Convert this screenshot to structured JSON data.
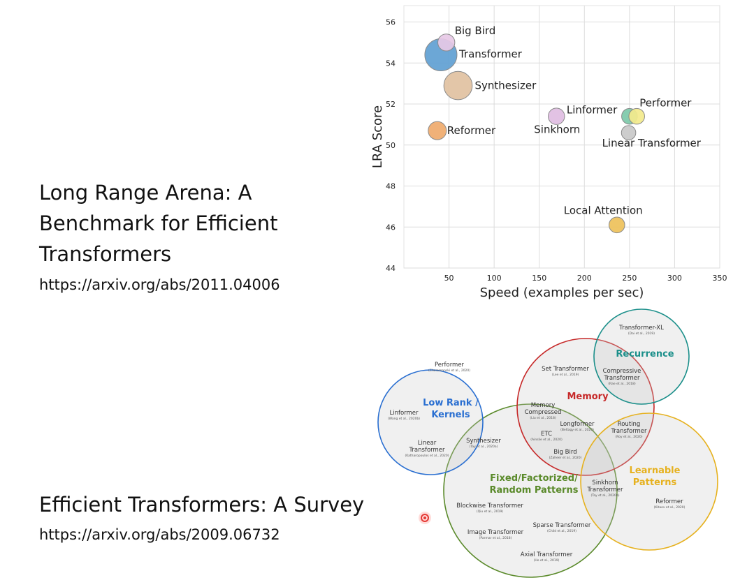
{
  "paper1": {
    "title_lines": [
      "Long Range Arena: A",
      "Benchmark for Efficient",
      "Transformers"
    ],
    "url": "https://arxiv.org/abs/2011.04006"
  },
  "paper2": {
    "title": "Efficient Transformers: A Survey",
    "url": "https://arxiv.org/abs/2009.06732"
  },
  "chart_data": [
    {
      "type": "scatter",
      "title": "",
      "xlabel": "Speed (examples per sec)",
      "ylabel": "LRA Score",
      "xlim": [
        0,
        350
      ],
      "ylim": [
        44,
        56.8
      ],
      "xticks": [
        50,
        100,
        150,
        200,
        250,
        300,
        350
      ],
      "yticks": [
        44,
        46,
        48,
        50,
        52,
        54,
        56
      ],
      "grid": true,
      "points": [
        {
          "label": "Big Bird",
          "x": 47,
          "y": 55.0,
          "size": 0.28,
          "color": "#e7c9e6",
          "label_dx": 12,
          "label_dy": -12
        },
        {
          "label": "Transformer",
          "x": 41,
          "y": 54.4,
          "size": 1.0,
          "color": "#5fa0d2",
          "label_dx": 26,
          "label_dy": 4
        },
        {
          "label": "Synthesizer",
          "x": 60,
          "y": 52.9,
          "size": 0.78,
          "color": "#e1c1a1",
          "label_dx": 24,
          "label_dy": 5
        },
        {
          "label": "Reformer",
          "x": 37,
          "y": 50.7,
          "size": 0.32,
          "color": "#efaa6c",
          "label_dx": 14,
          "label_dy": 5
        },
        {
          "label": "Sinkhorn",
          "x": 169,
          "y": 51.4,
          "size": 0.26,
          "color": "#e0bde2",
          "label_dx": -32,
          "label_dy": 24
        },
        {
          "label": "Linformer",
          "x": 250,
          "y": 51.4,
          "size": 0.24,
          "color": "#7dc9a9",
          "label_dx": -90,
          "label_dy": -4
        },
        {
          "label": "Performer",
          "x": 258,
          "y": 51.4,
          "size": 0.24,
          "color": "#f3ea8c",
          "label_dx": 4,
          "label_dy": -14
        },
        {
          "label": "Linear Transformer",
          "x": 249,
          "y": 50.6,
          "size": 0.2,
          "color": "#c9c9c9",
          "label_dx": -38,
          "label_dy": 20
        },
        {
          "label": "Local Attention",
          "x": 236,
          "y": 46.1,
          "size": 0.24,
          "color": "#eec15a",
          "label_dx": -76,
          "label_dy": -16
        }
      ]
    },
    {
      "type": "venn",
      "sets": [
        {
          "name": "Low Rank / Kernels",
          "title_lines": [
            "Low Rank /",
            "Kernels"
          ],
          "color": "#2a6fd1"
        },
        {
          "name": "Memory",
          "title_lines": [
            "Memory"
          ],
          "color": "#c62828"
        },
        {
          "name": "Recurrence",
          "title_lines": [
            "Recurrence"
          ],
          "color": "#1b8f8a"
        },
        {
          "name": "Learnable Patterns",
          "title_lines": [
            "Learnable",
            "Patterns"
          ],
          "color": "#e6b11e"
        },
        {
          "name": "Fixed/Factorized/ Random Patterns",
          "title_lines": [
            "Fixed/Factorized/",
            "Random Patterns"
          ],
          "color": "#5a8a2a"
        }
      ],
      "items": [
        {
          "lines": [
            "Performer"
          ],
          "cite": "(Choromanski et al., 2020)"
        },
        {
          "lines": [
            "Linformer"
          ],
          "cite": "(Wang et al., 2020b)"
        },
        {
          "lines": [
            "Linear",
            "Transformer"
          ],
          "cite": "(Katharopoulos et al., 2020)"
        },
        {
          "lines": [
            "Synthesizer"
          ],
          "cite": "(Tay et al., 2020a)"
        },
        {
          "lines": [
            "Set Transformer"
          ],
          "cite": "(Lee et al., 2019)"
        },
        {
          "lines": [
            "Memory",
            "Compressed"
          ],
          "cite": "(Liu et al., 2018)"
        },
        {
          "lines": [
            "Longformer"
          ],
          "cite": "(Beltagy et al., 2020)"
        },
        {
          "lines": [
            "ETC"
          ],
          "cite": "(Ainslie et al., 2020)"
        },
        {
          "lines": [
            "Big Bird"
          ],
          "cite": "(Zaheer et al., 2020)"
        },
        {
          "lines": [
            "Transformer-XL"
          ],
          "cite": "(Dai et al., 2019)"
        },
        {
          "lines": [
            "Compressive",
            "Transformer"
          ],
          "cite": "(Rae et al., 2018)"
        },
        {
          "lines": [
            "Routing",
            "Transformer"
          ],
          "cite": "(Roy et al., 2020)"
        },
        {
          "lines": [
            "Sinkhorn",
            "Transformer"
          ],
          "cite": "(Tay et al., 2020b)"
        },
        {
          "lines": [
            "Reformer"
          ],
          "cite": "(Kitaev et al., 2020)"
        },
        {
          "lines": [
            "Blockwise Transformer"
          ],
          "cite": "(Qiu et al., 2019)"
        },
        {
          "lines": [
            "Sparse Transformer"
          ],
          "cite": "(Child et al., 2019)"
        },
        {
          "lines": [
            "Image Transformer"
          ],
          "cite": "(Parmar et al., 2018)"
        },
        {
          "lines": [
            "Axial Transformer"
          ],
          "cite": "(Ho et al., 2019)"
        }
      ]
    }
  ]
}
